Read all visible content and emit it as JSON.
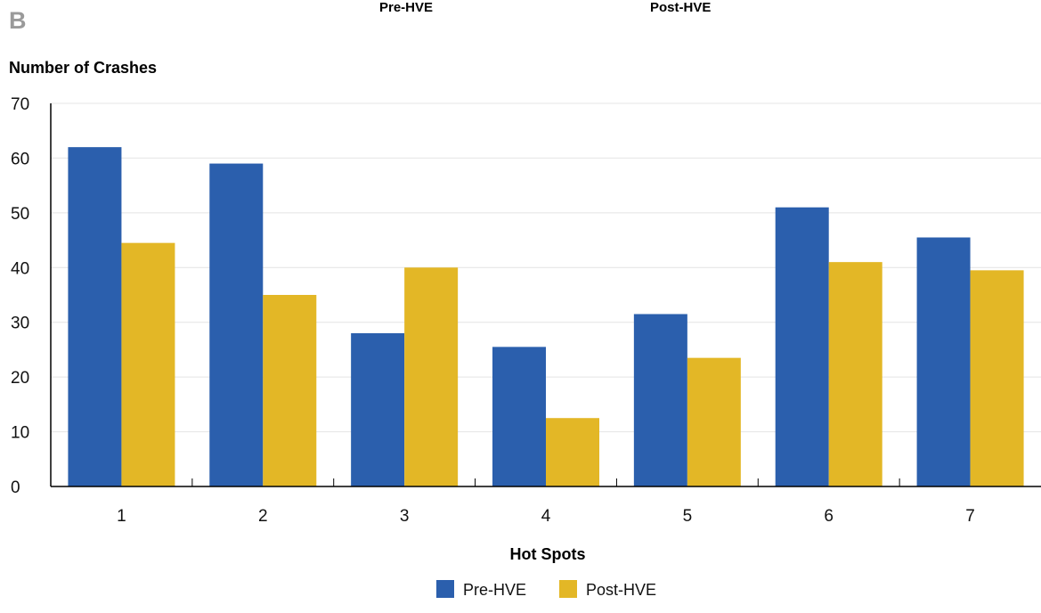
{
  "panel_label": "B",
  "header_labels": [
    "Pre-HVE",
    "Post-HVE"
  ],
  "colors": {
    "pre": "#2b5fad",
    "post": "#e3b726",
    "grid": "#e4e4e4",
    "axis": "#000000"
  },
  "chart_data": {
    "type": "bar",
    "ylabel": "Number of Crashes",
    "xlabel": "Hot Spots",
    "ylim": [
      0,
      70
    ],
    "yticks": [
      0,
      10,
      20,
      30,
      40,
      50,
      60,
      70
    ],
    "grid": true,
    "legend_position": "bottom-center",
    "categories": [
      "1",
      "2",
      "3",
      "4",
      "5",
      "6",
      "7"
    ],
    "series": [
      {
        "name": "Pre-HVE",
        "values": [
          62,
          59,
          28,
          25.5,
          31.5,
          51,
          45.5
        ]
      },
      {
        "name": "Post-HVE",
        "values": [
          44.5,
          35,
          40,
          12.5,
          23.5,
          41,
          39.5
        ]
      }
    ]
  }
}
